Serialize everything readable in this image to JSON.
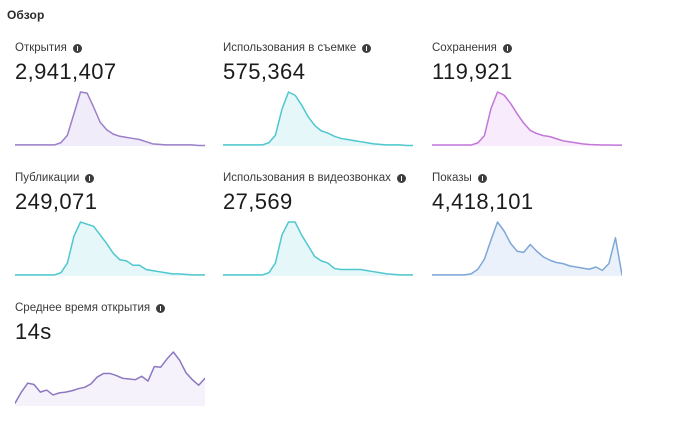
{
  "section": {
    "title": "Обзор"
  },
  "metrics": [
    {
      "label": "Открытия",
      "value": "2,941,407",
      "color": "#9b7fc9",
      "fill": "#f1ecfa",
      "series": [
        1,
        1,
        1,
        1,
        1,
        1,
        1,
        3,
        10,
        30,
        50,
        49,
        36,
        22,
        15,
        11,
        9,
        8,
        7,
        6,
        4,
        2,
        1.5,
        1,
        1,
        1,
        1,
        1,
        0.5,
        0.5
      ]
    },
    {
      "label": "Использования в съемке",
      "value": "575,364",
      "color": "#4ec7cf",
      "fill": "#e5f7f8",
      "series": [
        1,
        1,
        1,
        1,
        1,
        1,
        1,
        3,
        10,
        34,
        50,
        47,
        38,
        27,
        19,
        14,
        12,
        9,
        7,
        6,
        5,
        4,
        3,
        2,
        1.5,
        1,
        1,
        1,
        0.5,
        0.5
      ]
    },
    {
      "label": "Сохранения",
      "value": "119,921",
      "color": "#c276d9",
      "fill": "#f8ecfc",
      "series": [
        1,
        1,
        1,
        1,
        1,
        1,
        1,
        3,
        10,
        36,
        52,
        49,
        41,
        31,
        22,
        15,
        12,
        10,
        9,
        7,
        5,
        4,
        3,
        2,
        1.5,
        1.2,
        1,
        1,
        0.8,
        0.8
      ]
    },
    {
      "label": "Публикации",
      "value": "249,071",
      "color": "#4ec7cf",
      "fill": "#e5f7f8",
      "series": [
        1,
        1,
        1,
        1,
        1,
        1,
        1,
        3,
        12,
        37,
        50,
        48,
        46,
        38,
        30,
        21,
        15,
        14,
        10,
        10,
        6,
        5,
        4,
        3,
        2,
        2,
        1.5,
        1,
        1,
        1
      ]
    },
    {
      "label": "Использования в видеозвонках",
      "value": "27,569",
      "color": "#4ec7cf",
      "fill": "#e5f7f8",
      "series": [
        1,
        1,
        1,
        1,
        1,
        1,
        1,
        3,
        12,
        38,
        50,
        50,
        38,
        28,
        18,
        14,
        12,
        7,
        6,
        6,
        6,
        6,
        5,
        4,
        3,
        2,
        1.5,
        1,
        1,
        1
      ]
    },
    {
      "label": "Показы",
      "value": "4,418,101",
      "color": "#7fa7d6",
      "fill": "#eaf1fa",
      "series": [
        1,
        1,
        1,
        1,
        1,
        1,
        2,
        6,
        15,
        32,
        48,
        40,
        29,
        22,
        21,
        28,
        22,
        17,
        14,
        12,
        11,
        9,
        8,
        7,
        6,
        8,
        5,
        11,
        34,
        1
      ]
    },
    {
      "label": "Среднее время открытия",
      "value": "14s",
      "color": "#8d78c0",
      "fill": "#f5f2fb",
      "series": [
        4,
        20,
        33,
        31,
        20,
        23,
        16,
        19,
        20,
        22,
        25,
        27,
        32,
        42,
        47,
        47,
        44,
        40,
        39,
        38,
        43,
        36,
        57,
        56,
        68,
        78,
        66,
        48,
        38,
        30,
        40
      ]
    }
  ]
}
